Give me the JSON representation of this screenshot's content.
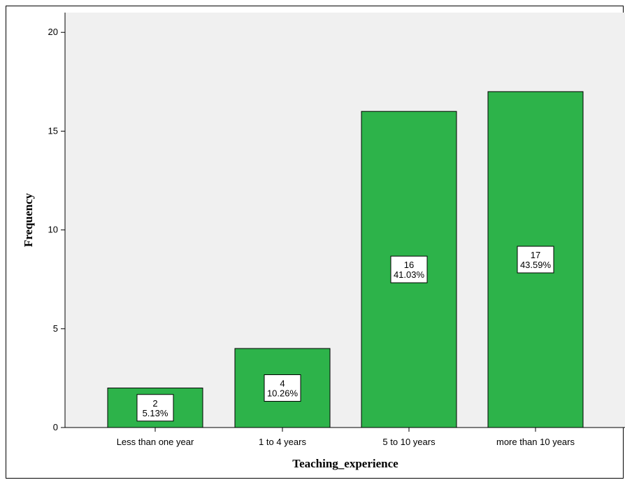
{
  "chart_data": {
    "type": "bar",
    "categories": [
      "Less than one year",
      "1 to 4 years",
      "5 to 10 years",
      "more than 10 years"
    ],
    "values": [
      2,
      4,
      16,
      17
    ],
    "percent_labels": [
      "5.13%",
      "10.26%",
      "41.03%",
      "43.59%"
    ],
    "xlabel": "Teaching_experience",
    "ylabel": "Frequency",
    "ylim": [
      0,
      21
    ],
    "yticks": [
      0,
      5,
      10,
      15,
      20
    ],
    "grid": false,
    "colors": {
      "bar_fill": "#2db34a",
      "bar_stroke": "#000000",
      "plot_background": "#f0f0f0",
      "label_box_fill": "#ffffff"
    }
  }
}
